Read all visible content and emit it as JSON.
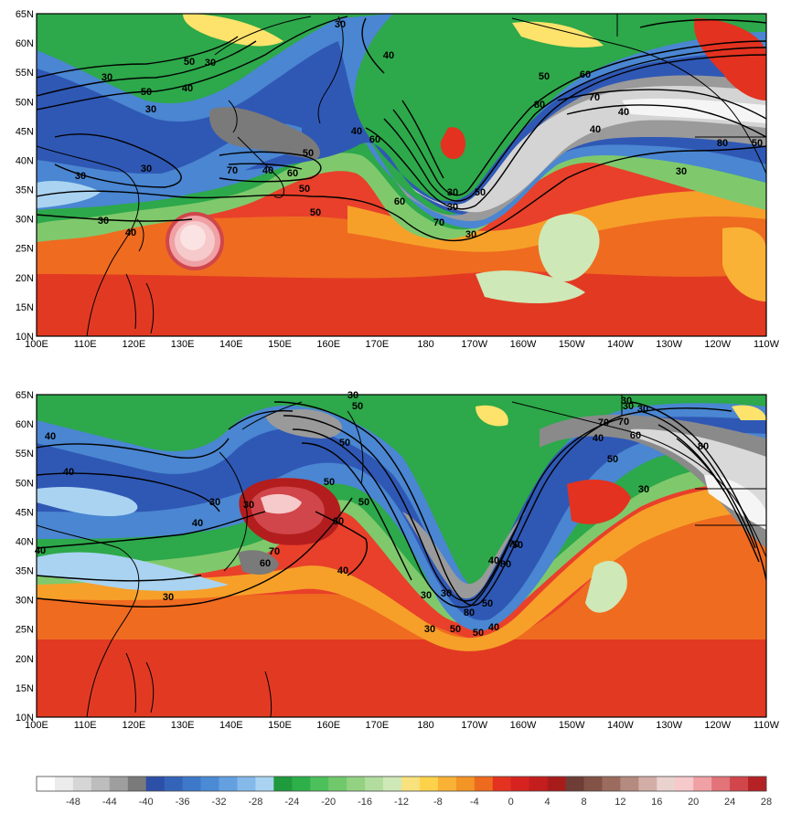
{
  "colors": {
    "water_cold": "#3a6fc9",
    "water_mid": "#7fb6e4",
    "green": "#2daf4a",
    "light_green": "#a8d88a",
    "yellow": "#fde36b",
    "orange": "#f39f2b",
    "red": "#e3321f",
    "dark_red": "#b31d1d",
    "pink": "#f4c0c4",
    "gray": "#8a8a8a",
    "light_gray": "#d9d9d9",
    "contour": "#000000",
    "coast": "#000000"
  },
  "panels": [
    {
      "name": "top",
      "lat_labels": [
        "65N",
        "60N",
        "55N",
        "50N",
        "45N",
        "40N",
        "35N",
        "30N",
        "25N",
        "20N",
        "15N",
        "10N"
      ],
      "lon_labels": [
        "100E",
        "110E",
        "120E",
        "130E",
        "140E",
        "150E",
        "160E",
        "170E",
        "180",
        "170W",
        "160W",
        "150W",
        "140W",
        "130W",
        "120W",
        "110W"
      ],
      "contour_labels": [
        "30",
        "40",
        "50",
        "30",
        "30",
        "40",
        "50",
        "30",
        "30",
        "50",
        "70",
        "60",
        "30",
        "40",
        "50",
        "60",
        "40",
        "50",
        "30",
        "40",
        "60",
        "30",
        "50",
        "30",
        "70",
        "80",
        "70",
        "60",
        "50",
        "40",
        "30",
        "80",
        "50",
        "40",
        "30"
      ]
    },
    {
      "name": "bottom",
      "lat_labels": [
        "65N",
        "60N",
        "55N",
        "50N",
        "45N",
        "40N",
        "35N",
        "30N",
        "25N",
        "20N",
        "15N",
        "10N"
      ],
      "lon_labels": [
        "100E",
        "110E",
        "120E",
        "130E",
        "140E",
        "150E",
        "160E",
        "170E",
        "180",
        "170W",
        "160W",
        "150W",
        "140W",
        "130W",
        "120W",
        "110W"
      ],
      "contour_labels": [
        "30",
        "50",
        "30",
        "40",
        "40",
        "30",
        "40",
        "40",
        "30",
        "60",
        "70",
        "50",
        "50",
        "60",
        "70",
        "50",
        "40",
        "30",
        "50",
        "40",
        "30",
        "50",
        "80",
        "30",
        "50",
        "70",
        "80",
        "40",
        "30",
        "50",
        "30",
        "70",
        "80",
        "50",
        "60",
        "40",
        "30",
        "30"
      ]
    }
  ],
  "colorbar": {
    "labels": [
      "-48",
      "-44",
      "-40",
      "-36",
      "-32",
      "-28",
      "-24",
      "-20",
      "-16",
      "-12",
      "-8",
      "-4",
      "0",
      "4",
      "8",
      "12",
      "16",
      "20",
      "24",
      "28"
    ],
    "colors": [
      "#ffffff",
      "#ececec",
      "#d6d6d6",
      "#bdbdbd",
      "#9e9e9e",
      "#7a7a7a",
      "#2c4fa8",
      "#3464b9",
      "#3d78c9",
      "#4b8bd6",
      "#64a0e0",
      "#84b9ea",
      "#a9d3f1",
      "#1f9a3d",
      "#2daf4a",
      "#4cc05a",
      "#71c86b",
      "#93d283",
      "#b3dd9f",
      "#cfe8b8",
      "#f7e27e",
      "#fdd24a",
      "#f9b236",
      "#f39426",
      "#ee6a1f",
      "#e3321f",
      "#d6231f",
      "#c41d1d",
      "#a81b1b",
      "#6d3d36",
      "#835247",
      "#9b6b5e",
      "#b58a7f",
      "#d2aea6",
      "#ead3cf",
      "#f6c9cb",
      "#efa1a5",
      "#e27378",
      "#d0464a",
      "#b52226"
    ]
  }
}
